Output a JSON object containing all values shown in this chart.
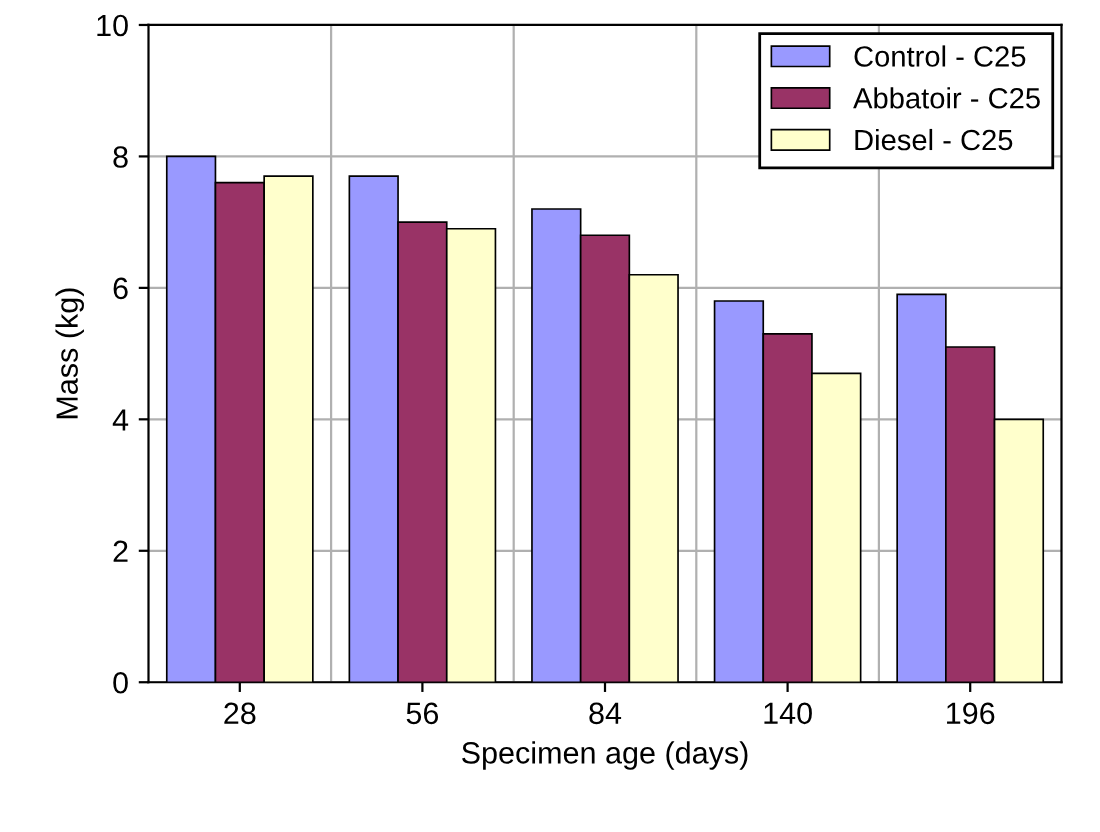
{
  "chart_data": {
    "type": "bar",
    "xlabel": "Specimen age (days)",
    "ylabel": "Mass (kg)",
    "categories": [
      "28",
      "56",
      "84",
      "140",
      "196"
    ],
    "series": [
      {
        "name": "Control - C25",
        "color": "#9999ff",
        "values": [
          8.0,
          7.7,
          7.2,
          5.8,
          5.9
        ]
      },
      {
        "name": "Abbatoir - C25",
        "color": "#993366",
        "values": [
          7.6,
          7.0,
          6.8,
          5.3,
          5.1
        ]
      },
      {
        "name": "Diesel - C25",
        "color": "#ffffcc",
        "values": [
          7.7,
          6.9,
          6.2,
          4.7,
          4.0
        ]
      }
    ],
    "ylim": [
      0,
      10
    ],
    "yticks": [
      0,
      2,
      4,
      6,
      8,
      10
    ],
    "grid": true,
    "legend": "top right"
  }
}
